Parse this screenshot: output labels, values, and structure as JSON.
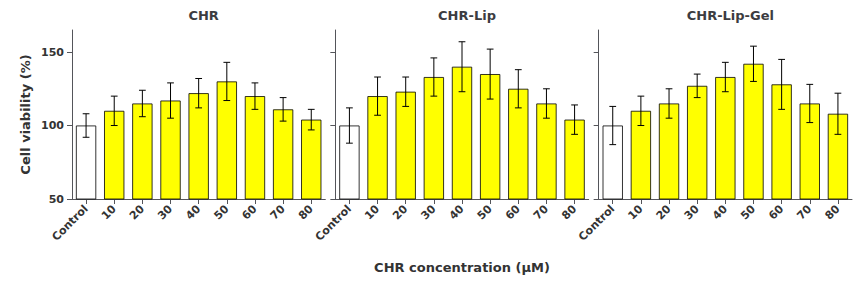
{
  "chart_data": [
    {
      "type": "bar",
      "title": "CHR",
      "categories": [
        "Control",
        "10",
        "20",
        "30",
        "40",
        "50",
        "60",
        "70",
        "80"
      ],
      "values": [
        100,
        110,
        115,
        117,
        122,
        130,
        120,
        111,
        104
      ],
      "errors": [
        8,
        10,
        9,
        12,
        10,
        13,
        9,
        8,
        7
      ],
      "colors": [
        "white",
        "yellow",
        "yellow",
        "yellow",
        "yellow",
        "yellow",
        "yellow",
        "yellow",
        "yellow"
      ],
      "ylabel": "Cell viability (%)",
      "ylim": [
        50,
        165
      ],
      "yticks": [
        50,
        100,
        150
      ],
      "grid": false
    },
    {
      "type": "bar",
      "title": "CHR-Lip",
      "categories": [
        "Control",
        "10",
        "20",
        "30",
        "40",
        "50",
        "60",
        "70",
        "80"
      ],
      "values": [
        100,
        120,
        123,
        133,
        140,
        135,
        125,
        115,
        104
      ],
      "errors": [
        12,
        13,
        10,
        13,
        17,
        17,
        13,
        10,
        10
      ],
      "colors": [
        "white",
        "yellow",
        "yellow",
        "yellow",
        "yellow",
        "yellow",
        "yellow",
        "yellow",
        "yellow"
      ],
      "xlabel": "CHR concentration (μM)",
      "ylim": [
        50,
        165
      ],
      "yticks": [
        50,
        100,
        150
      ],
      "grid": false,
      "tick_labels": "x"
    },
    {
      "type": "bar",
      "title": "CHR-Lip-Gel",
      "categories": [
        "Control",
        "10",
        "20",
        "30",
        "40",
        "50",
        "60",
        "70",
        "80"
      ],
      "values": [
        100,
        110,
        115,
        127,
        133,
        142,
        128,
        115,
        108
      ],
      "errors": [
        13,
        10,
        10,
        8,
        10,
        12,
        17,
        13,
        14
      ],
      "colors": [
        "white",
        "yellow",
        "yellow",
        "yellow",
        "yellow",
        "yellow",
        "yellow",
        "yellow",
        "yellow"
      ],
      "ylim": [
        50,
        165
      ],
      "yticks": [
        50,
        100,
        150
      ],
      "grid": false,
      "tick_labels": "x"
    }
  ]
}
